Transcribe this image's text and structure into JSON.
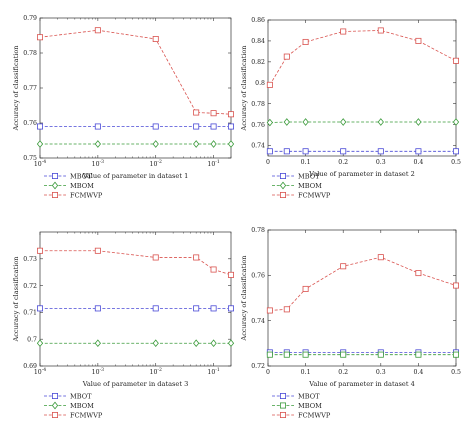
{
  "colors": {
    "MBOT": "#4a4ad6",
    "MBOM": "#3a9a3a",
    "FCMWVP": "#d9534f"
  },
  "chart_data": [
    {
      "type": "line",
      "xscale": "log",
      "xlim": [
        0.0001,
        0.2
      ],
      "ylim": [
        0.75,
        0.79
      ],
      "xticks": [
        0.0001,
        0.001,
        0.01,
        0.1
      ],
      "xtick_labels": [
        "10^-4",
        "10^-3",
        "10^-2",
        "10^-1"
      ],
      "yticks": [
        0.75,
        0.76,
        0.77,
        0.78,
        0.79
      ],
      "ytick_labels": [
        "0.75",
        "0.76",
        "0.77",
        "0.78",
        "0.79"
      ],
      "xlabel": "Value of parameter in dataset 1",
      "ylabel": "Accuracy of classification",
      "x": [
        0.0001,
        0.001,
        0.01,
        0.05,
        0.1,
        0.2
      ],
      "series": [
        {
          "name": "MBOT",
          "marker": "square",
          "values": [
            0.759,
            0.759,
            0.759,
            0.759,
            0.759,
            0.759
          ]
        },
        {
          "name": "MBOM",
          "marker": "diamond",
          "values": [
            0.754,
            0.754,
            0.754,
            0.754,
            0.754,
            0.754
          ]
        },
        {
          "name": "FCMWVP",
          "marker": "square",
          "values": [
            0.7845,
            0.7865,
            0.784,
            0.763,
            0.7628,
            0.7625
          ]
        }
      ]
    },
    {
      "type": "line",
      "xscale": "linear",
      "xlim": [
        0,
        0.5
      ],
      "ylim": [
        0.73,
        0.86
      ],
      "xticks": [
        0,
        0.1,
        0.2,
        0.3,
        0.4,
        0.5
      ],
      "xtick_labels": [
        "0",
        "0.1",
        "0.2",
        "0.3",
        "0.4",
        "0.5"
      ],
      "yticks": [
        0.74,
        0.76,
        0.78,
        0.8,
        0.82,
        0.84,
        0.86
      ],
      "ytick_labels": [
        "0.74",
        "0.76",
        "0.78",
        "0.8",
        "0.82",
        "0.84",
        "0.86"
      ],
      "xlabel": "Value of parameter in dataset 2",
      "ylabel": "Accuracy of classification",
      "x": [
        0.005,
        0.05,
        0.1,
        0.2,
        0.3,
        0.4,
        0.5
      ],
      "series": [
        {
          "name": "MBOT",
          "marker": "square",
          "values": [
            0.7345,
            0.7345,
            0.7345,
            0.7345,
            0.7345,
            0.7345,
            0.7345
          ]
        },
        {
          "name": "MBOM",
          "marker": "diamond",
          "values": [
            0.762,
            0.7625,
            0.7625,
            0.7625,
            0.7625,
            0.7625,
            0.7625
          ]
        },
        {
          "name": "FCMWVP",
          "marker": "square",
          "values": [
            0.798,
            0.825,
            0.839,
            0.849,
            0.85,
            0.84,
            0.821
          ]
        }
      ]
    },
    {
      "type": "line",
      "xscale": "log",
      "xlim": [
        0.0001,
        0.2
      ],
      "ylim": [
        0.69,
        0.74
      ],
      "xticks": [
        0.0001,
        0.001,
        0.01,
        0.1
      ],
      "xtick_labels": [
        "10^-4",
        "10^-3",
        "10^-2",
        "10^-1"
      ],
      "yticks": [
        0.69,
        0.7,
        0.71,
        0.72,
        0.73
      ],
      "ytick_labels": [
        "0.69",
        "0.7",
        "0.71",
        "0.72",
        "0.73"
      ],
      "xlabel": "Value of parameter in dataset 3",
      "ylabel": "Accuracy of classification",
      "x": [
        0.0001,
        0.001,
        0.01,
        0.05,
        0.1,
        0.2
      ],
      "series": [
        {
          "name": "MBOT",
          "marker": "square",
          "values": [
            0.7115,
            0.7115,
            0.7115,
            0.7115,
            0.7115,
            0.7115
          ]
        },
        {
          "name": "MBOM",
          "marker": "diamond",
          "values": [
            0.6985,
            0.6985,
            0.6985,
            0.6985,
            0.6985,
            0.6985
          ]
        },
        {
          "name": "FCMWVP",
          "marker": "square",
          "values": [
            0.733,
            0.733,
            0.7305,
            0.7305,
            0.726,
            0.724
          ]
        }
      ]
    },
    {
      "type": "line",
      "xscale": "linear",
      "xlim": [
        0,
        0.5
      ],
      "ylim": [
        0.72,
        0.78
      ],
      "xticks": [
        0,
        0.1,
        0.2,
        0.3,
        0.4,
        0.5
      ],
      "xtick_labels": [
        "0",
        "0.1",
        "0.2",
        "0.3",
        "0.4",
        "0.5"
      ],
      "yticks": [
        0.72,
        0.74,
        0.76,
        0.78
      ],
      "ytick_labels": [
        "0.72",
        "0.74",
        "0.76",
        "0.78"
      ],
      "xlabel": "Value of parameter in dataset 4",
      "ylabel": "Accuracy of classification",
      "x": [
        0.005,
        0.05,
        0.1,
        0.2,
        0.3,
        0.4,
        0.5
      ],
      "series": [
        {
          "name": "MBOT",
          "marker": "square",
          "values": [
            0.726,
            0.726,
            0.726,
            0.726,
            0.726,
            0.726,
            0.726
          ]
        },
        {
          "name": "MBOM",
          "marker": "square",
          "values": [
            0.725,
            0.725,
            0.725,
            0.725,
            0.725,
            0.725,
            0.725
          ]
        },
        {
          "name": "FCMWVP",
          "marker": "square",
          "values": [
            0.7445,
            0.745,
            0.754,
            0.764,
            0.768,
            0.761,
            0.7555
          ]
        }
      ]
    }
  ]
}
